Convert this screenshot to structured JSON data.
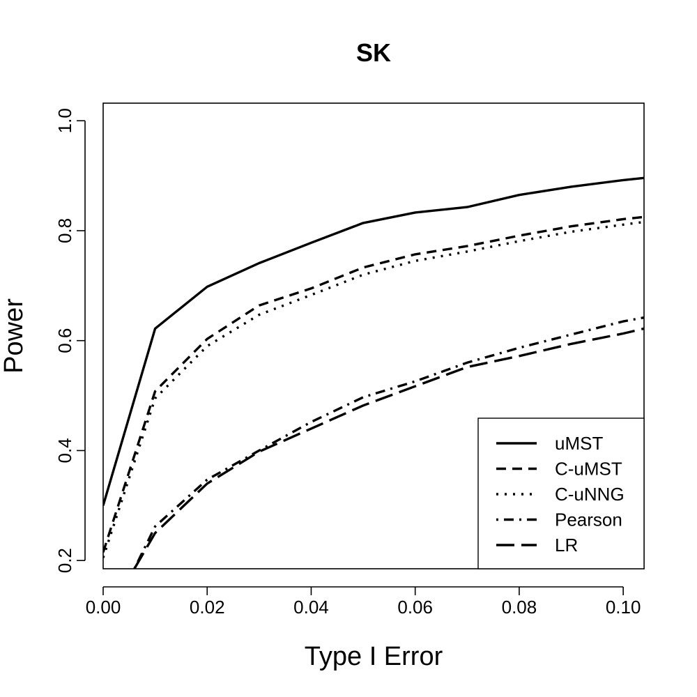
{
  "chart_data": {
    "type": "line",
    "title": "SK",
    "xlabel": "Type I Error",
    "ylabel": "Power",
    "xlim": [
      0,
      0.104
    ],
    "ylim": [
      0.185,
      1.032
    ],
    "xticks": [
      0,
      0.02,
      0.04,
      0.06,
      0.08,
      0.1
    ],
    "xtick_labels": [
      "0.00",
      "0.02",
      "0.04",
      "0.06",
      "0.08",
      "0.10"
    ],
    "yticks": [
      0.2,
      0.4,
      0.6,
      0.8,
      1.0
    ],
    "ytick_labels": [
      "0.2",
      "0.4",
      "0.6",
      "0.8",
      "1.0"
    ],
    "grid": false,
    "legend_position": "bottom-right",
    "series": [
      {
        "name": "uMST",
        "color": "#000000",
        "line_style": "solid",
        "x": [
          0.0,
          0.01,
          0.02,
          0.03,
          0.04,
          0.05,
          0.06,
          0.07,
          0.08,
          0.09,
          0.1,
          0.104
        ],
        "y": [
          0.3,
          0.622,
          0.698,
          0.741,
          0.778,
          0.814,
          0.833,
          0.843,
          0.865,
          0.88,
          0.892,
          0.896
        ]
      },
      {
        "name": "C-uMST",
        "color": "#000000",
        "line_style": "dashed",
        "x": [
          0.0,
          0.01,
          0.02,
          0.03,
          0.04,
          0.05,
          0.06,
          0.07,
          0.08,
          0.09,
          0.1,
          0.104
        ],
        "y": [
          0.215,
          0.508,
          0.603,
          0.664,
          0.695,
          0.733,
          0.757,
          0.772,
          0.791,
          0.808,
          0.821,
          0.825
        ]
      },
      {
        "name": "C-uNNG",
        "color": "#000000",
        "line_style": "dotted",
        "x": [
          0.0,
          0.01,
          0.02,
          0.03,
          0.04,
          0.05,
          0.06,
          0.07,
          0.08,
          0.09,
          0.1,
          0.104
        ],
        "y": [
          0.205,
          0.495,
          0.59,
          0.647,
          0.683,
          0.72,
          0.745,
          0.762,
          0.781,
          0.798,
          0.811,
          0.816
        ]
      },
      {
        "name": "Pearson",
        "color": "#000000",
        "line_style": "dotdash",
        "x": [
          0.006,
          0.01,
          0.02,
          0.03,
          0.04,
          0.05,
          0.06,
          0.07,
          0.08,
          0.09,
          0.1,
          0.104
        ],
        "y": [
          0.185,
          0.262,
          0.347,
          0.4,
          0.452,
          0.497,
          0.526,
          0.56,
          0.587,
          0.611,
          0.635,
          0.642
        ]
      },
      {
        "name": "LR",
        "color": "#000000",
        "line_style": "longdash",
        "x": [
          0.006,
          0.01,
          0.02,
          0.03,
          0.04,
          0.05,
          0.06,
          0.07,
          0.08,
          0.09,
          0.1,
          0.104
        ],
        "y": [
          0.185,
          0.25,
          0.34,
          0.398,
          0.44,
          0.482,
          0.517,
          0.552,
          0.572,
          0.594,
          0.613,
          0.622
        ]
      }
    ]
  }
}
